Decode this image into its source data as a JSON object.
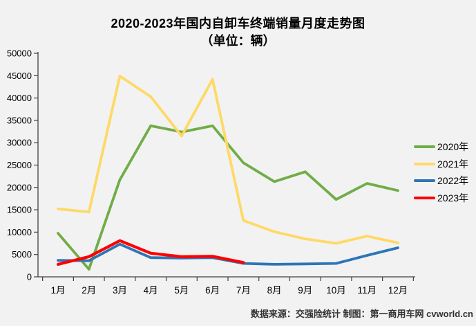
{
  "title": {
    "line1": "2020-2023年国内自卸车终端销量月度走势图",
    "line2": "（单位：辆）"
  },
  "footer": {
    "credit": "数据来源：交强险统计  制图：第一商用车网 cvworld.cn"
  },
  "colors": {
    "background": "#F2F2F2",
    "axis": "#404040",
    "text": "#000000",
    "series_2020": "#70AD47",
    "series_2021": "#FFD966",
    "series_2022": "#2E75B6",
    "series_2023": "#FF0000"
  },
  "chart_data": {
    "type": "line",
    "title": "2020-2023年国内自卸车终端销量月度走势图",
    "subtitle": "（单位：辆）",
    "categories": [
      "1月",
      "2月",
      "3月",
      "4月",
      "5月",
      "6月",
      "7月",
      "8月",
      "9月",
      "10月",
      "11月",
      "12月"
    ],
    "series": [
      {
        "name": "2020年",
        "color": "#70AD47",
        "values": [
          9750,
          1700,
          21700,
          33800,
          32400,
          33800,
          25500,
          21300,
          23500,
          17300,
          20900,
          19300
        ]
      },
      {
        "name": "2021年",
        "color": "#FFD966",
        "values": [
          15200,
          14500,
          44900,
          40300,
          31500,
          44200,
          12600,
          10100,
          8500,
          7500,
          9100,
          7600
        ]
      },
      {
        "name": "2022年",
        "color": "#2E75B6",
        "values": [
          3700,
          3600,
          7300,
          4300,
          4200,
          4300,
          3000,
          2800,
          2900,
          3000,
          4800,
          6500
        ]
      },
      {
        "name": "2023年",
        "color": "#FF0000",
        "values": [
          2800,
          4500,
          8100,
          5300,
          4500,
          4600,
          3200
        ]
      }
    ],
    "ylim": [
      0,
      50000
    ],
    "ytick_step": 5000,
    "ytick_labels": [
      "0",
      "5000",
      "10000",
      "15000",
      "20000",
      "25000",
      "30000",
      "35000",
      "40000",
      "45000",
      "50000"
    ],
    "grid": false,
    "legend_position": "right",
    "source": "数据来源：交强险统计  制图：第一商用车网 cvworld.cn"
  }
}
